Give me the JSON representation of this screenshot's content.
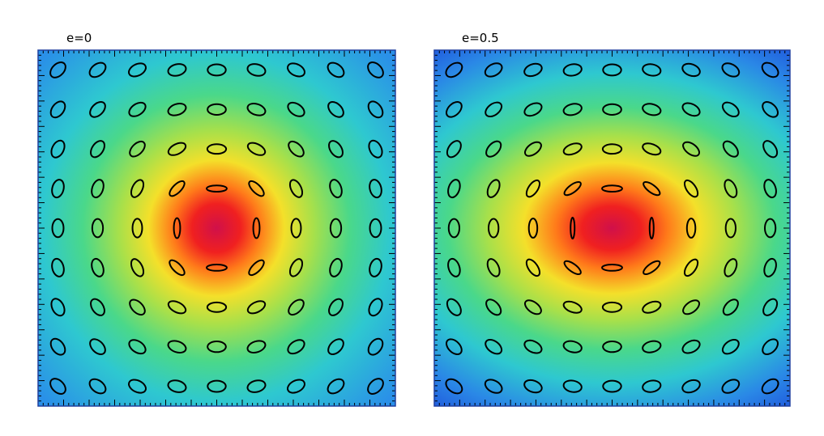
{
  "panels": [
    {
      "label": "e=0"
    },
    {
      "label": "e=0.5"
    }
  ]
}
